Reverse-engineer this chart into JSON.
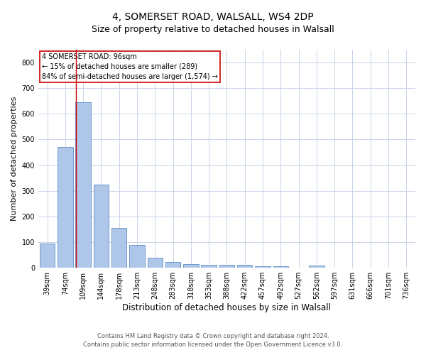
{
  "title1": "4, SOMERSET ROAD, WALSALL, WS4 2DP",
  "title2": "Size of property relative to detached houses in Walsall",
  "xlabel": "Distribution of detached houses by size in Walsall",
  "ylabel": "Number of detached properties",
  "categories": [
    "39sqm",
    "74sqm",
    "109sqm",
    "144sqm",
    "178sqm",
    "213sqm",
    "248sqm",
    "283sqm",
    "318sqm",
    "353sqm",
    "388sqm",
    "422sqm",
    "457sqm",
    "492sqm",
    "527sqm",
    "562sqm",
    "597sqm",
    "631sqm",
    "666sqm",
    "701sqm",
    "736sqm"
  ],
  "values": [
    95,
    470,
    645,
    325,
    155,
    90,
    38,
    22,
    15,
    12,
    12,
    11,
    7,
    5,
    0,
    8,
    0,
    0,
    0,
    0,
    0
  ],
  "bar_color": "#aec6e8",
  "bar_edge_color": "#5b8cc8",
  "marker_label": "4 SOMERSET ROAD: 96sqm",
  "annotation_line1": "← 15% of detached houses are smaller (289)",
  "annotation_line2": "84% of semi-detached houses are larger (1,574) →",
  "vline_color": "#cc0000",
  "annotation_box_edge": "#cc0000",
  "vline_x": 1.6,
  "ylim": [
    0,
    850
  ],
  "yticks": [
    0,
    100,
    200,
    300,
    400,
    500,
    600,
    700,
    800
  ],
  "footer1": "Contains HM Land Registry data © Crown copyright and database right 2024.",
  "footer2": "Contains public sector information licensed under the Open Government Licence v3.0.",
  "bg_color": "#ffffff",
  "grid_color": "#c8d4e8",
  "title1_fontsize": 10,
  "title2_fontsize": 9,
  "xlabel_fontsize": 8.5,
  "ylabel_fontsize": 8,
  "tick_fontsize": 7,
  "annotation_fontsize": 7,
  "footer_fontsize": 6
}
